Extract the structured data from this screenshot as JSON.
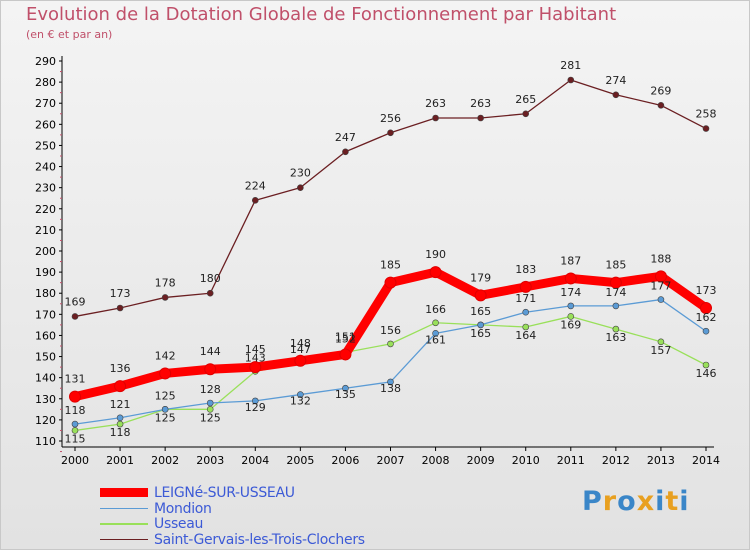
{
  "chart_data": {
    "type": "line",
    "title": "Evolution de la Dotation Globale de Fonctionnement par Habitant",
    "subtitle": "(en € et par an)",
    "xlabel": "",
    "ylabel": "",
    "x": [
      "2000",
      "2001",
      "2002",
      "2003",
      "2004",
      "2005",
      "2006",
      "2007",
      "2008",
      "2009",
      "2010",
      "2011",
      "2012",
      "2013",
      "2014"
    ],
    "ylim": [
      110,
      290
    ],
    "yticks": [
      110,
      120,
      130,
      140,
      150,
      160,
      170,
      180,
      190,
      200,
      210,
      220,
      230,
      240,
      250,
      260,
      270,
      280,
      290
    ],
    "grid": false,
    "legend_position": "bottom-left",
    "series": [
      {
        "name": "LEIGNé-SUR-USSEAU",
        "color": "#ff0000",
        "values": [
          131,
          136,
          142,
          144,
          145,
          148,
          151,
          185,
          190,
          179,
          183,
          187,
          185,
          188,
          173
        ]
      },
      {
        "name": "Mondion",
        "color": "#5b9bd5",
        "values": [
          118,
          121,
          125,
          128,
          129,
          132,
          135,
          138,
          161,
          165,
          171,
          174,
          174,
          177,
          162
        ]
      },
      {
        "name": "Usseau",
        "color": "#99e05a",
        "values": [
          115,
          118,
          125,
          125,
          143,
          147,
          152,
          156,
          166,
          165,
          164,
          169,
          163,
          157,
          146
        ]
      },
      {
        "name": "Saint-Gervais-les-Trois-Clochers",
        "color": "#6b1f22",
        "values": [
          169,
          173,
          178,
          180,
          224,
          230,
          247,
          256,
          263,
          263,
          265,
          281,
          274,
          269,
          258
        ]
      }
    ]
  },
  "brand": {
    "text": "Proxiti",
    "colors": [
      "#3a86c8",
      "#e8a020",
      "#3a86c8",
      "#e8a020",
      "#3a86c8",
      "#e8a020",
      "#3a86c8"
    ]
  }
}
